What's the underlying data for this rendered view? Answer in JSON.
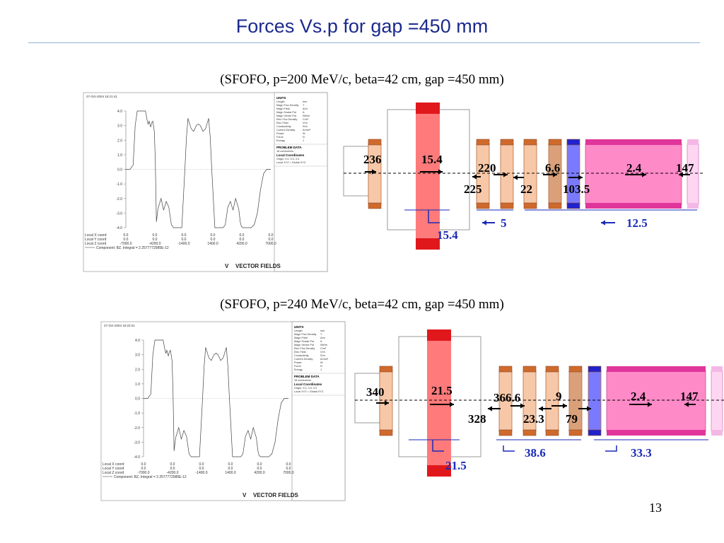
{
  "title": "Forces Vs.p  for gap =450 mm",
  "page_number": "13",
  "colors": {
    "title": "#1c2a8c",
    "coil_light": "#f7c8a8",
    "coil_dark": "#cf6a2c",
    "rf_red": "#ff7a7a",
    "rf_dark": "#e0181c",
    "coil_brown": "#d9a07a",
    "coil_blue": "#7a7aff",
    "pink_big": "#ff8ac8",
    "pink_light": "#ffd6f2",
    "blue_text": "#1a2ab8"
  },
  "panels": [
    {
      "subtitle": "(SFOFO, p=200 MeV/c, beta=42 cm, gap =450 mm)",
      "plot": {
        "date": "27-Oct-2004 16:21:41",
        "y_ticks": [
          "4.0",
          "3.0",
          "2.0",
          "1.0",
          "0.0",
          "-1.0",
          "-2.0",
          "-3.0",
          "-4.0"
        ],
        "coord_labels": [
          "Local X coord",
          "Local Y coord",
          "Local Z coord"
        ],
        "coord_rows": [
          [
            "0.0",
            "0.0",
            "0.0",
            "0.0",
            "0.0",
            "0.0"
          ],
          [
            "0.0",
            "0.0",
            "0.0",
            "0.0",
            "0.0",
            "0.0"
          ],
          [
            "-7000.0",
            "-4200.0",
            "-1400.0",
            "1400.0",
            "4200.0",
            "7000.0"
          ]
        ],
        "component": "Component: BZ, Integral = 2.2577772985E-12",
        "logo": "VECTOR FIELDS",
        "info": {
          "units_header": "UNITS",
          "units": [
            [
              "Length",
              "mm"
            ],
            [
              "Magn Flux Density",
              "T"
            ],
            [
              "Magn Field",
              "A/m"
            ],
            [
              "Magn Scalar Pot",
              "A"
            ],
            [
              "Magn Vector Pot",
              "Wb/m"
            ],
            [
              "Elec Flux Density",
              "C/m²"
            ],
            [
              "Elec Field",
              "V/m"
            ],
            [
              "Conductivity",
              "S/m"
            ],
            [
              "Current Density",
              "A/mm²"
            ],
            [
              "Power",
              "W"
            ],
            [
              "Force",
              "N"
            ],
            [
              "Energy",
              "J"
            ]
          ],
          "problem_header": "PROBLEM DATA",
          "problem_lines": [
            "18 conductors"
          ],
          "local_header": "Local Coordinates",
          "local_lines": [
            "Origin: 0.0, 0.0, 0.0",
            "Local XYZ = Global XYZ"
          ]
        }
      },
      "forces": {
        "f1": "236",
        "f2": "15.4",
        "f3": "220",
        "f4": "6.6",
        "f5": "2.4",
        "f6": "147",
        "f7": "225",
        "f8": "22",
        "f9": "103.5",
        "d1": "5",
        "d2": "12.5",
        "d3": "15.4"
      }
    },
    {
      "subtitle": "(SFOFO, p=240 MeV/c, beta=42 cm, gap =450 mm)",
      "plot": {
        "date": "27-Oct-2004 16:23:41",
        "y_ticks": [
          "4.0",
          "3.0",
          "2.0",
          "1.0",
          "0.0",
          "-1.0",
          "-2.0",
          "-3.0",
          "-4.0"
        ],
        "coord_labels": [
          "Local X coord",
          "Local Y coord",
          "Local Z coord"
        ],
        "coord_rows": [
          [
            "0.0",
            "0.0",
            "0.0",
            "0.0",
            "0.0",
            "0.0"
          ],
          [
            "0.0",
            "0.0",
            "0.0",
            "0.0",
            "0.0",
            "0.0"
          ],
          [
            "-7000.0",
            "-4200.0",
            "-1400.0",
            "1400.0",
            "4200.0",
            "7000.0"
          ]
        ],
        "component": "Component: BZ, Integral = 2.2577772985E-12",
        "logo": "VECTOR FIELDS",
        "info": {
          "units_header": "UNITS",
          "units": [
            [
              "Length",
              "mm"
            ],
            [
              "Magn Flux Density",
              "T"
            ],
            [
              "Magn Field",
              "A/m"
            ],
            [
              "Magn Scalar Pot",
              "A"
            ],
            [
              "Magn Vector Pot",
              "Wb/m"
            ],
            [
              "Elec Flux Density",
              "C/m²"
            ],
            [
              "Elec Field",
              "V/m"
            ],
            [
              "Conductivity",
              "S/m"
            ],
            [
              "Current Density",
              "A/mm²"
            ],
            [
              "Power",
              "W"
            ],
            [
              "Force",
              "N"
            ],
            [
              "Energy",
              "J"
            ]
          ],
          "problem_header": "PROBLEM DATA",
          "problem_lines": [
            "18 conductors"
          ],
          "local_header": "Local Coordinates",
          "local_lines": [
            "Origin: 0.0, 0.0, 0.0",
            "Local XYZ = Global XYZ"
          ]
        }
      },
      "forces": {
        "f1": "340",
        "f2": "21.5",
        "f3": "366.6",
        "f4": "9",
        "f5": "2.4",
        "f6": "147",
        "f7": "328",
        "f8": "23.3",
        "f9": "79",
        "d1": "38.6",
        "d2": "33.3",
        "d3": "21.5"
      }
    }
  ]
}
